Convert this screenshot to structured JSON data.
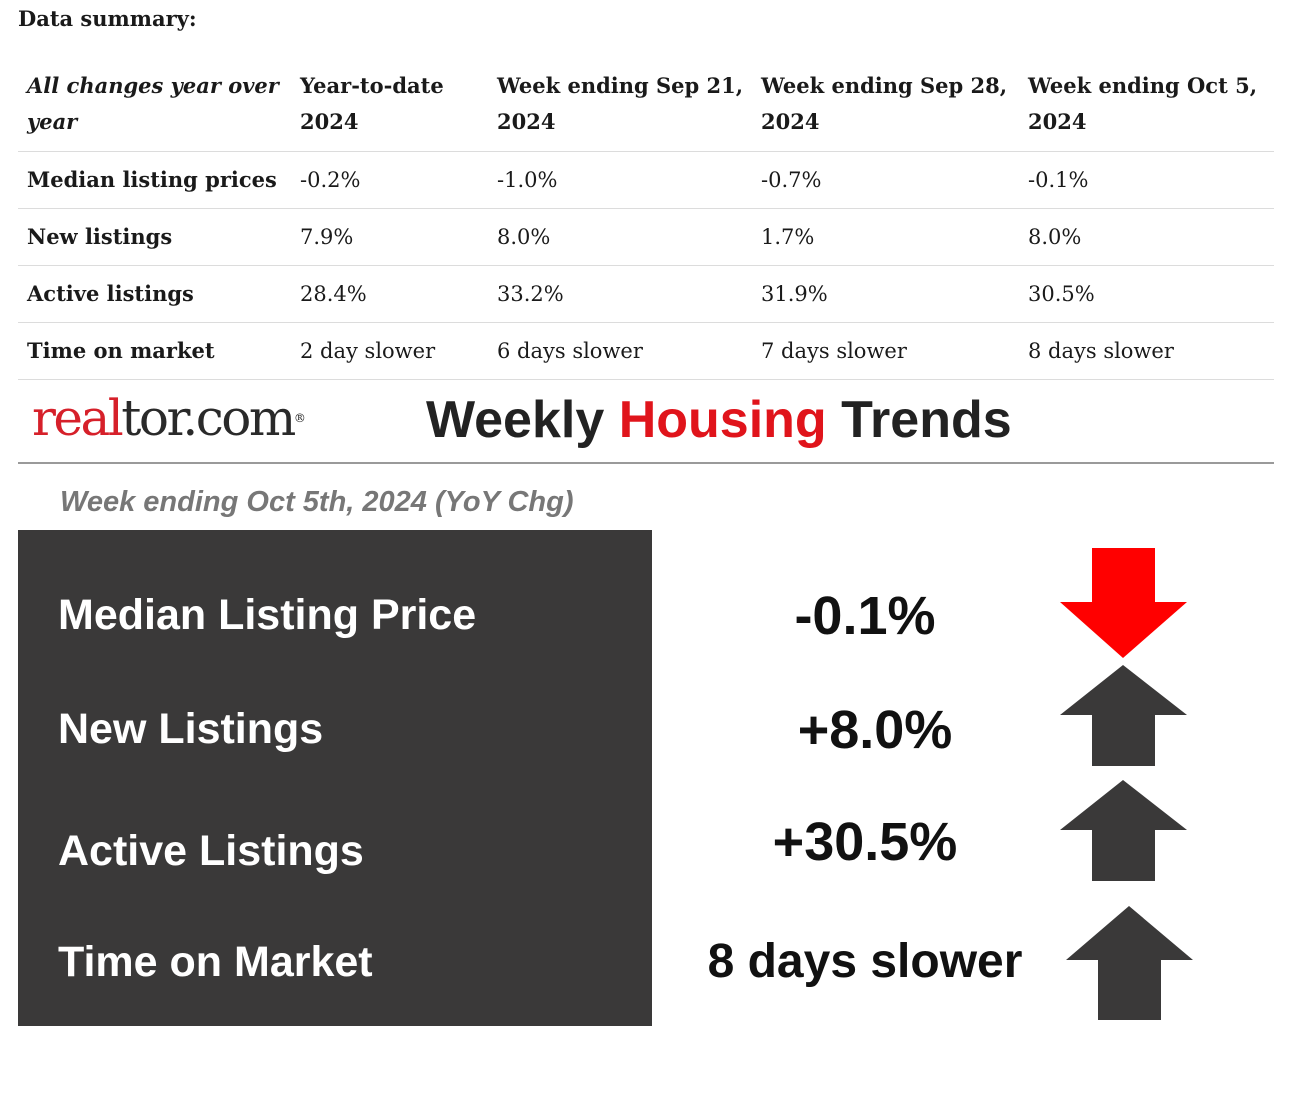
{
  "summary": {
    "heading": "Data summary:",
    "corner_header": "All changes year over year",
    "columns": [
      "Year-to-date 2024",
      "Week ending Sep 21, 2024",
      "Week ending Sep 28, 2024",
      "Week ending Oct 5, 2024"
    ],
    "rows": [
      {
        "label": "Median listing prices",
        "values": [
          "-0.2%",
          "-1.0%",
          "-0.7%",
          "-0.1%"
        ]
      },
      {
        "label": "New listings",
        "values": [
          "7.9%",
          "8.0%",
          "1.7%",
          "8.0%"
        ]
      },
      {
        "label": "Active listings",
        "values": [
          "28.4%",
          "33.2%",
          "31.9%",
          "30.5%"
        ]
      },
      {
        "label": "Time on market",
        "values": [
          "2 day slower",
          "6 days slower",
          "7 days slower",
          "8 days slower"
        ]
      }
    ]
  },
  "infographic": {
    "logo_part1": "real",
    "logo_part2": "tor.com",
    "logo_reg": "®",
    "title_part1": "Weekly ",
    "title_accent": "Housing",
    "title_part2": " Trends",
    "week_label": "Week ending Oct 5th, 2024 (YoY Chg)",
    "metrics": [
      {
        "label": "Median Listing Price",
        "value": "-0.1%",
        "direction": "down",
        "arrow_color": "#ff0000"
      },
      {
        "label": "New Listings",
        "value": "+8.0%",
        "direction": "up",
        "arrow_color": "#3a3939"
      },
      {
        "label": "Active Listings",
        "value": "+30.5%",
        "direction": "up",
        "arrow_color": "#3a3939"
      },
      {
        "label": "Time on Market",
        "value": "8 days slower",
        "direction": "up",
        "arrow_color": "#3a3939"
      }
    ]
  },
  "colors": {
    "brand_red": "#d6202a",
    "accent_red": "#e0141b",
    "panel_dark": "#3a3939"
  }
}
